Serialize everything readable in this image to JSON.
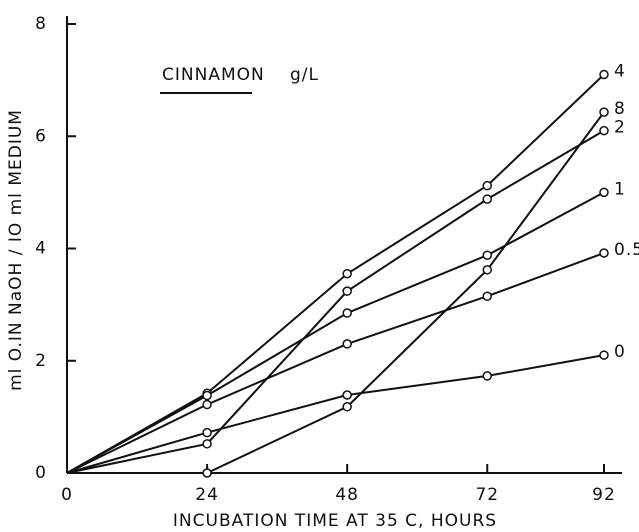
{
  "chart_data": {
    "type": "line",
    "title": "CINNAMON",
    "title_unit": "g/L",
    "x_label": "INCUBATION TIME AT 35 C, HOURS",
    "y_label": "ml O.IN NaOH / IO ml MEDIUM",
    "x": [
      0,
      24,
      48,
      72,
      92
    ],
    "xlim": [
      0,
      92
    ],
    "xticks": [
      0,
      24,
      48,
      72,
      92
    ],
    "ylim": [
      0,
      8
    ],
    "yticks": [
      0,
      2,
      4,
      6,
      8
    ],
    "series": [
      {
        "name": "4",
        "color": "#111111",
        "values": [
          0,
          1.42,
          3.55,
          5.12,
          7.1
        ]
      },
      {
        "name": "8",
        "color": "#111111",
        "values": [
          0,
          0,
          1.18,
          3.62,
          6.43
        ]
      },
      {
        "name": "2",
        "color": "#111111",
        "values": [
          0,
          0.52,
          3.24,
          4.88,
          6.1
        ]
      },
      {
        "name": "1",
        "color": "#111111",
        "values": [
          0,
          1.38,
          2.85,
          3.88,
          5.0
        ]
      },
      {
        "name": "0.5",
        "color": "#111111",
        "values": [
          0,
          1.22,
          2.3,
          3.15,
          3.92
        ]
      },
      {
        "name": "0",
        "color": "#111111",
        "values": [
          0,
          0.72,
          1.39,
          1.73,
          2.1
        ]
      }
    ]
  }
}
